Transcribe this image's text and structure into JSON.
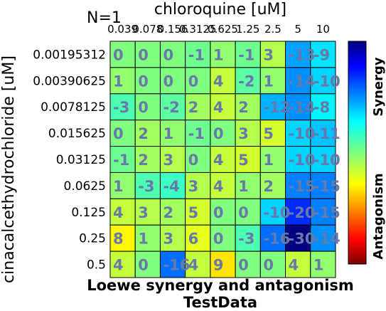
{
  "chart_data": {
    "type": "heatmap",
    "corner_text": "N=1",
    "x_axis_title": "chloroquine [uM]",
    "y_axis_title": "cinacalcethydrochloride [uM]",
    "title_line1": "Loewe synergy and antagonism",
    "title_line2": "TestData",
    "colorbar_label_top": "Synergy",
    "colorbar_label_bottom": "Antagonism",
    "x_tick_labels": [
      "0.039",
      "0.078",
      "0.156",
      "0.3125",
      "0.625",
      "1.25",
      "2.5",
      "5",
      "10"
    ],
    "x_tick_labels_drawn": [
      "0.039",
      "0.078",
      "0.156",
      "0.3125",
      "0.625",
      "1.25",
      "2.5",
      "5",
      "10"
    ],
    "y_tick_labels": [
      "0.00195312",
      "0.00390625",
      "0.0078125",
      "0.015625",
      "0.03125",
      "0.0625",
      "0.125",
      "0.25",
      "0.5"
    ],
    "values": [
      [
        0,
        0,
        0,
        -1,
        1,
        -1,
        3,
        -13,
        -9
      ],
      [
        1,
        0,
        0,
        0,
        4,
        -2,
        1,
        -14,
        -10
      ],
      [
        -3,
        0,
        -2,
        2,
        4,
        2,
        -12,
        -14,
        -8
      ],
      [
        0,
        2,
        1,
        -1,
        0,
        3,
        5,
        -10,
        -11
      ],
      [
        -1,
        2,
        3,
        0,
        4,
        5,
        1,
        -10,
        -10
      ],
      [
        1,
        -3,
        -4,
        3,
        4,
        1,
        2,
        -15,
        -15
      ],
      [
        4,
        3,
        2,
        5,
        0,
        0,
        -10,
        -20,
        -15
      ],
      [
        8,
        1,
        3,
        6,
        0,
        -3,
        -16,
        -30,
        -14
      ],
      [
        4,
        0,
        -16,
        4,
        9,
        0,
        0,
        4,
        1
      ]
    ],
    "cell_label_color": "#6878a8",
    "color_range": [
      -30,
      30
    ]
  }
}
